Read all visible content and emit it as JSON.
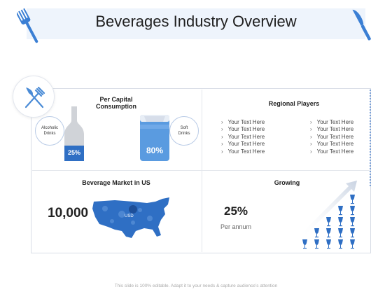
{
  "title": "Beverages Industry Overview",
  "per_capita": {
    "label_line1": "Per Capital",
    "label_line2": "Consumption",
    "alcoholic": {
      "label_line1": "Alcoholic",
      "label_line2": "Drinks",
      "percent_text": "25%",
      "percent_value": 25
    },
    "soft": {
      "label_line1": "Soft",
      "label_line2": "Drinks",
      "percent_text": "80%",
      "percent_value": 80
    }
  },
  "regional_players": {
    "label": "Regional Players",
    "left_items": [
      "Your Text Here",
      "Your Text Here",
      "Your Text Here",
      "Your Text Here",
      "Your Text Here"
    ],
    "right_items": [
      "Your Text Here",
      "Your Text Here",
      "Your Text Here",
      "Your Text Here",
      "Your Text Here"
    ]
  },
  "market_us": {
    "label": "Beverage Market in US",
    "value": "10,000",
    "currency": "USD"
  },
  "growing": {
    "label": "Growing",
    "percent": "25%",
    "period": "Per annum"
  },
  "footer": "This slide is 100% editable. Adapt it to your needs & capture audience’s attention",
  "colors": {
    "accent": "#2f6fc4",
    "accent_light": "#5a9be0",
    "bottle_gray": "#d0d3d8",
    "band": "#eef4fc"
  },
  "icons": [
    "fork-icon",
    "knife-icon",
    "fork-knife-icon",
    "bottle-icon",
    "can-icon",
    "us-map-icon",
    "wine-glass-icon"
  ]
}
